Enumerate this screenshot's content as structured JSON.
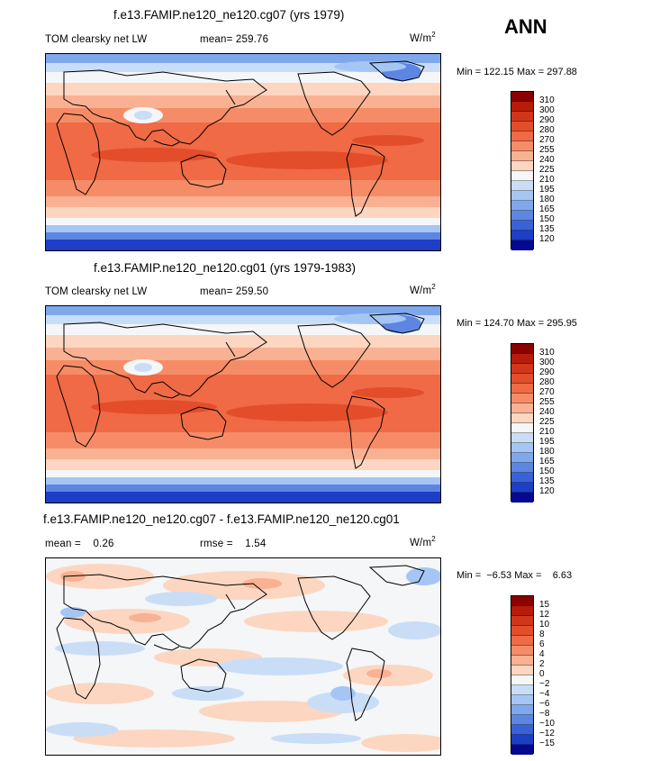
{
  "season": "ANN",
  "units_prefix": "W/m",
  "units_exp": "2",
  "panels": [
    {
      "title": "f.e13.FAMIP.ne120_ne120.cg07 (yrs 1979)",
      "left_label": "TOM clearsky net LW",
      "mid_label": "mean= 259.76",
      "minmax": "Min = 122.15 Max = 297.88",
      "ticks": [
        "310",
        "300",
        "290",
        "280",
        "270",
        "255",
        "240",
        "225",
        "210",
        "195",
        "180",
        "165",
        "150",
        "135",
        "120"
      ],
      "colors": [
        "#8b0000",
        "#b81b0a",
        "#d2361a",
        "#e34d2a",
        "#ef6a45",
        "#f68c67",
        "#f9b193",
        "#fcd6c0",
        "#f4f6f7",
        "#c9ddf7",
        "#a5c6f4",
        "#7fa8ec",
        "#5d86e3",
        "#3a62d8",
        "#1d3ec6",
        "#06098f"
      ]
    },
    {
      "title": "f.e13.FAMIP.ne120_ne120.cg01 (yrs 1979-1983)",
      "left_label": "TOM clearsky net LW",
      "mid_label": "mean= 259.50",
      "minmax": "Min = 124.70 Max = 295.95",
      "ticks": [
        "310",
        "300",
        "290",
        "280",
        "270",
        "255",
        "240",
        "225",
        "210",
        "195",
        "180",
        "165",
        "150",
        "135",
        "120"
      ],
      "colors": [
        "#8b0000",
        "#b81b0a",
        "#d2361a",
        "#e34d2a",
        "#ef6a45",
        "#f68c67",
        "#f9b193",
        "#fcd6c0",
        "#f4f6f7",
        "#c9ddf7",
        "#a5c6f4",
        "#7fa8ec",
        "#5d86e3",
        "#3a62d8",
        "#1d3ec6",
        "#06098f"
      ]
    },
    {
      "title": "f.e13.FAMIP.ne120_ne120.cg07 - f.e13.FAMIP.ne120_ne120.cg01",
      "left_label": "mean =    0.26",
      "mid_label": "rmse =    1.54",
      "minmax": "Min =  −6.53 Max =    6.63",
      "ticks": [
        "15",
        "12",
        "10",
        "8",
        "6",
        "4",
        "2",
        "0",
        "−2",
        "−4",
        "−6",
        "−8",
        "−10",
        "−12",
        "−15"
      ],
      "colors": [
        "#8b0000",
        "#b81b0a",
        "#d2361a",
        "#e34d2a",
        "#ef6a45",
        "#f68c67",
        "#f9b193",
        "#fcd6c0",
        "#f4f6f7",
        "#c9ddf7",
        "#a5c6f4",
        "#7fa8ec",
        "#5d86e3",
        "#3a62d8",
        "#1d3ec6",
        "#06098f"
      ]
    }
  ]
}
